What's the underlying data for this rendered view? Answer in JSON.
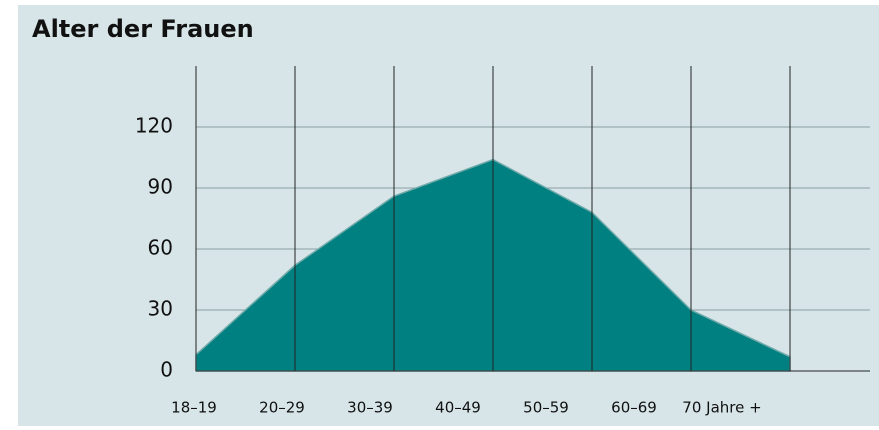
{
  "chart_data": {
    "type": "area",
    "title": "Alter der Frauen",
    "categories": [
      "18–19",
      "20–29",
      "30–39",
      "40–49",
      "50–59",
      "60–69",
      "70 Jahre +"
    ],
    "values": [
      8,
      52,
      86,
      104,
      78,
      30,
      7
    ],
    "color": "#008080",
    "ylim": [
      0,
      150
    ],
    "yticks": [
      0,
      30,
      60,
      90,
      120
    ],
    "grid": true
  }
}
